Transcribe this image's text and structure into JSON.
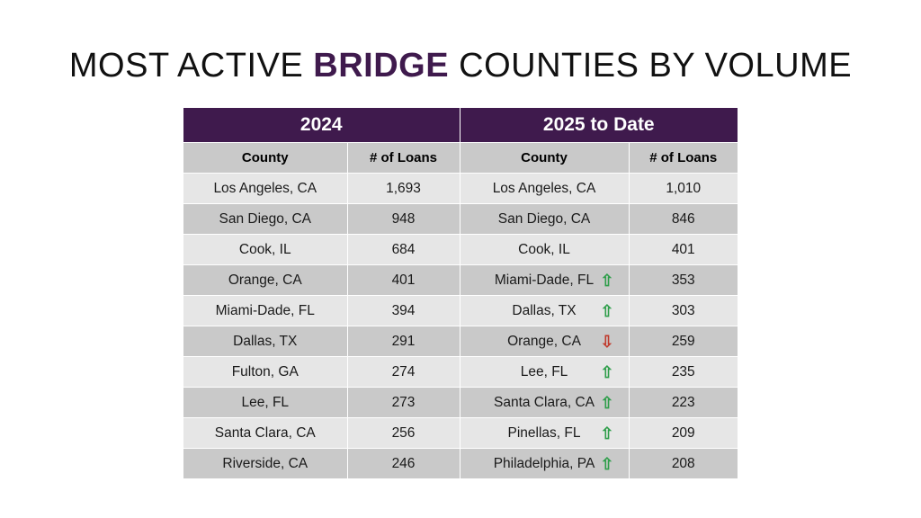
{
  "title": {
    "prefix": "MOST ACTIVE ",
    "highlight": "BRIDGE",
    "suffix": " COUNTIES BY VOLUME"
  },
  "colors": {
    "header_purple": "#3f1a4d",
    "arrow_up": "#2e9e4a",
    "arrow_down": "#c0392b",
    "row_light": "#e6e6e6",
    "row_dark": "#c9c9c9"
  },
  "table": {
    "year_2024": "2024",
    "year_2025": "2025 to Date",
    "col_county": "County",
    "col_loans": "# of Loans",
    "rows": [
      {
        "c1": "Los Angeles, CA",
        "n1": "1,693",
        "c2": "Los Angeles, CA",
        "n2": "1,010",
        "arrow": "",
        "icon": ""
      },
      {
        "c1": "San Diego, CA",
        "n1": "948",
        "c2": "San Diego, CA",
        "n2": "846",
        "arrow": "",
        "icon": ""
      },
      {
        "c1": "Cook, IL",
        "n1": "684",
        "c2": "Cook, IL",
        "n2": "401",
        "arrow": "",
        "icon": ""
      },
      {
        "c1": "Orange, CA",
        "n1": "401",
        "c2": "Miami-Dade, FL",
        "n2": "353",
        "arrow": "up",
        "icon": "up-arrow-icon"
      },
      {
        "c1": "Miami-Dade, FL",
        "n1": "394",
        "c2": "Dallas, TX",
        "n2": "303",
        "arrow": "up",
        "icon": "up-arrow-icon"
      },
      {
        "c1": "Dallas, TX",
        "n1": "291",
        "c2": "Orange, CA",
        "n2": "259",
        "arrow": "down",
        "icon": "down-arrow-icon"
      },
      {
        "c1": "Fulton, GA",
        "n1": "274",
        "c2": "Lee, FL",
        "n2": "235",
        "arrow": "up",
        "icon": "up-arrow-icon"
      },
      {
        "c1": "Lee, FL",
        "n1": "273",
        "c2": "Santa Clara, CA",
        "n2": "223",
        "arrow": "up",
        "icon": "up-arrow-icon"
      },
      {
        "c1": "Santa Clara, CA",
        "n1": "256",
        "c2": "Pinellas, FL",
        "n2": "209",
        "arrow": "up",
        "icon": "up-arrow-icon"
      },
      {
        "c1": "Riverside, CA",
        "n1": "246",
        "c2": "Philadelphia, PA",
        "n2": "208",
        "arrow": "up",
        "icon": "up-arrow-icon"
      }
    ]
  }
}
